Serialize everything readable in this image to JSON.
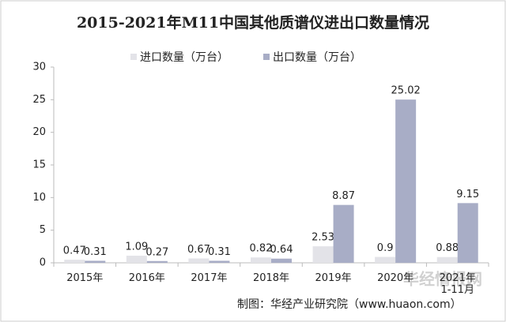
{
  "chart_data": {
    "type": "bar",
    "title": "2015-2021年M11中国其他质谱仪进出口数量情况",
    "categories": [
      "2015年",
      "2016年",
      "2017年",
      "2018年",
      "2019年",
      "2020年",
      "2021年\n1-11月"
    ],
    "series": [
      {
        "name": "进口数量（万台）",
        "color": "#e3e3e8",
        "values": [
          0.47,
          1.09,
          0.67,
          0.82,
          2.53,
          0.9,
          0.88
        ]
      },
      {
        "name": "出口数量（万台）",
        "color": "#a8adc6",
        "values": [
          0.31,
          0.27,
          0.31,
          0.64,
          8.87,
          25.02,
          9.15
        ]
      }
    ],
    "ylim": [
      0,
      30
    ],
    "yticks": [
      0,
      5,
      10,
      15,
      20,
      25,
      30
    ],
    "source": "制图：华经产业研究院（www.huaon.com）",
    "watermark": "华经情报网"
  }
}
